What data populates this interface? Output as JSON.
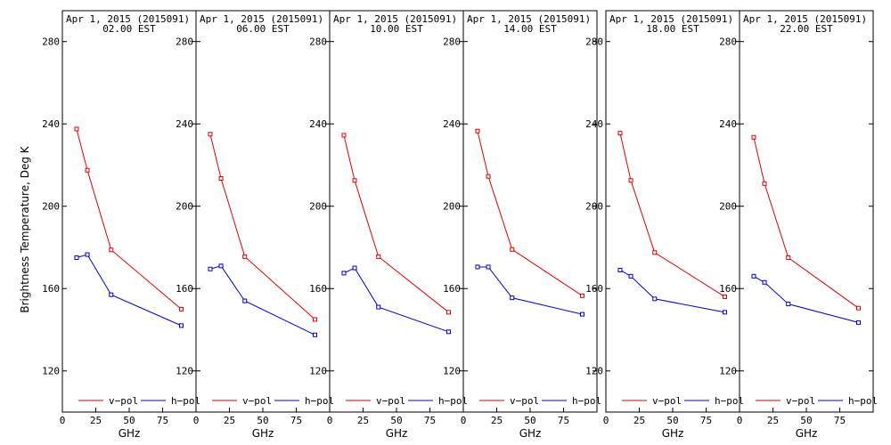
{
  "ylabel": "Brightness Temperature, Deg K",
  "colors": {
    "v_pol": "#e00000",
    "h_pol": "#0000cc",
    "axis": "#000000"
  },
  "chart_data": [
    {
      "type": "line",
      "title": "Apr  1, 2015 (2015091)",
      "subtitle": "02.00 EST",
      "xlabel": "GHz",
      "ylabel": "Brightness Temperature, Deg K",
      "x": [
        10.65,
        18.7,
        36.5,
        89.0
      ],
      "xlim": [
        0,
        100
      ],
      "ylim": [
        100,
        295
      ],
      "xticks": [
        0,
        25,
        50,
        75
      ],
      "yticks": [
        120,
        160,
        200,
        240,
        280
      ],
      "legend": "bottom",
      "series": [
        {
          "name": "v−pol",
          "values": [
            237.5,
            217.5,
            178.8,
            150.0
          ]
        },
        {
          "name": "h−pol",
          "values": [
            175.0,
            176.5,
            157.0,
            142.0
          ]
        }
      ]
    },
    {
      "type": "line",
      "title": "Apr  1, 2015 (2015091)",
      "subtitle": "06.00 EST",
      "xlabel": "GHz",
      "ylabel": "",
      "x": [
        10.65,
        18.7,
        36.5,
        89.0
      ],
      "xlim": [
        0,
        100
      ],
      "ylim": [
        100,
        295
      ],
      "xticks": [
        0,
        25,
        50,
        75
      ],
      "yticks": [
        120,
        160,
        200,
        240,
        280
      ],
      "legend": "bottom",
      "series": [
        {
          "name": "v−pol",
          "values": [
            235.0,
            213.5,
            175.5,
            145.0
          ]
        },
        {
          "name": "h−pol",
          "values": [
            169.5,
            171.0,
            154.0,
            137.5
          ]
        }
      ]
    },
    {
      "type": "line",
      "title": "Apr  1, 2015 (2015091)",
      "subtitle": "10.00 EST",
      "xlabel": "GHz",
      "ylabel": "",
      "x": [
        10.65,
        18.7,
        36.5,
        89.0
      ],
      "xlim": [
        0,
        100
      ],
      "ylim": [
        100,
        295
      ],
      "xticks": [
        0,
        25,
        50,
        75
      ],
      "yticks": [
        120,
        160,
        200,
        240,
        280
      ],
      "legend": "bottom",
      "series": [
        {
          "name": "v−pol",
          "values": [
            234.5,
            212.5,
            175.5,
            148.5
          ]
        },
        {
          "name": "h−pol",
          "values": [
            167.5,
            170.0,
            151.0,
            139.0
          ]
        }
      ]
    },
    {
      "type": "line",
      "title": "Apr  1, 2015 (2015091)",
      "subtitle": "14.00 EST",
      "xlabel": "GHz",
      "ylabel": "",
      "x": [
        10.65,
        18.7,
        36.5,
        89.0
      ],
      "xlim": [
        0,
        100
      ],
      "ylim": [
        100,
        295
      ],
      "xticks": [
        0,
        25,
        50,
        75
      ],
      "yticks": [
        120,
        160,
        200,
        240,
        280
      ],
      "legend": "bottom",
      "series": [
        {
          "name": "v−pol",
          "values": [
            236.5,
            214.5,
            179.0,
            156.5
          ]
        },
        {
          "name": "h−pol",
          "values": [
            170.5,
            170.5,
            155.5,
            147.5
          ]
        }
      ]
    },
    {
      "type": "line",
      "title": "Apr  1, 2015 (2015091)",
      "subtitle": "18.00 EST",
      "xlabel": "GHz",
      "ylabel": "",
      "x": [
        10.65,
        18.7,
        36.5,
        89.0
      ],
      "xlim": [
        0,
        100
      ],
      "ylim": [
        100,
        295
      ],
      "xticks": [
        0,
        25,
        50,
        75
      ],
      "yticks": [
        120,
        160,
        200,
        240,
        280
      ],
      "legend": "bottom",
      "series": [
        {
          "name": "v−pol",
          "values": [
            235.5,
            212.5,
            177.5,
            156.0
          ]
        },
        {
          "name": "h−pol",
          "values": [
            169.0,
            166.0,
            155.0,
            148.5
          ]
        }
      ]
    },
    {
      "type": "line",
      "title": "Apr  1, 2015 (2015091)",
      "subtitle": "22.00 EST",
      "xlabel": "GHz",
      "ylabel": "",
      "x": [
        10.65,
        18.7,
        36.5,
        89.0
      ],
      "xlim": [
        0,
        100
      ],
      "ylim": [
        100,
        295
      ],
      "xticks": [
        0,
        25,
        50,
        75
      ],
      "yticks": [
        120,
        160,
        200,
        240,
        280
      ],
      "legend": "bottom",
      "series": [
        {
          "name": "v−pol",
          "values": [
            233.5,
            211.0,
            175.0,
            150.5
          ]
        },
        {
          "name": "h−pol",
          "values": [
            166.0,
            163.0,
            152.5,
            143.5
          ]
        }
      ]
    }
  ]
}
